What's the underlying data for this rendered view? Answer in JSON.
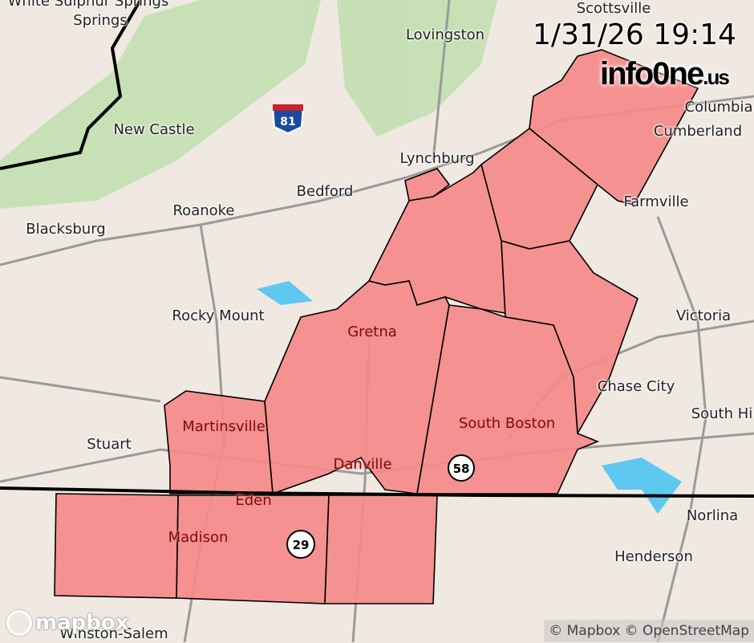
{
  "timestamp": "1/31/26 19:14",
  "logo": {
    "main": "info0ne",
    "tld": ".us"
  },
  "attribution": "© Mapbox © OpenStreetMap",
  "mapbox_logo": "mapbox",
  "colors": {
    "alert_fill": "#f58a8a",
    "border": "#000000",
    "water": "#5fc8f0",
    "land": "#efe9e2",
    "forest": "#b8dba0"
  },
  "places": [
    "White Sulphur Springs",
    "Springs",
    "New Castle",
    "Roanoke",
    "Blacksburg",
    "Bedford",
    "Lynchburg",
    "Lovingston",
    "Scottsville",
    "Columbia",
    "Cumberland",
    "Farmville",
    "Rocky Mount",
    "Gretna",
    "Victoria",
    "Chase City",
    "South Boston",
    "South Hill",
    "Martinsville",
    "Stuart",
    "Danville",
    "Eden",
    "Madison",
    "Norlina",
    "Henderson",
    "Winston-Salem"
  ],
  "shields": [
    "81",
    "58",
    "29"
  ]
}
